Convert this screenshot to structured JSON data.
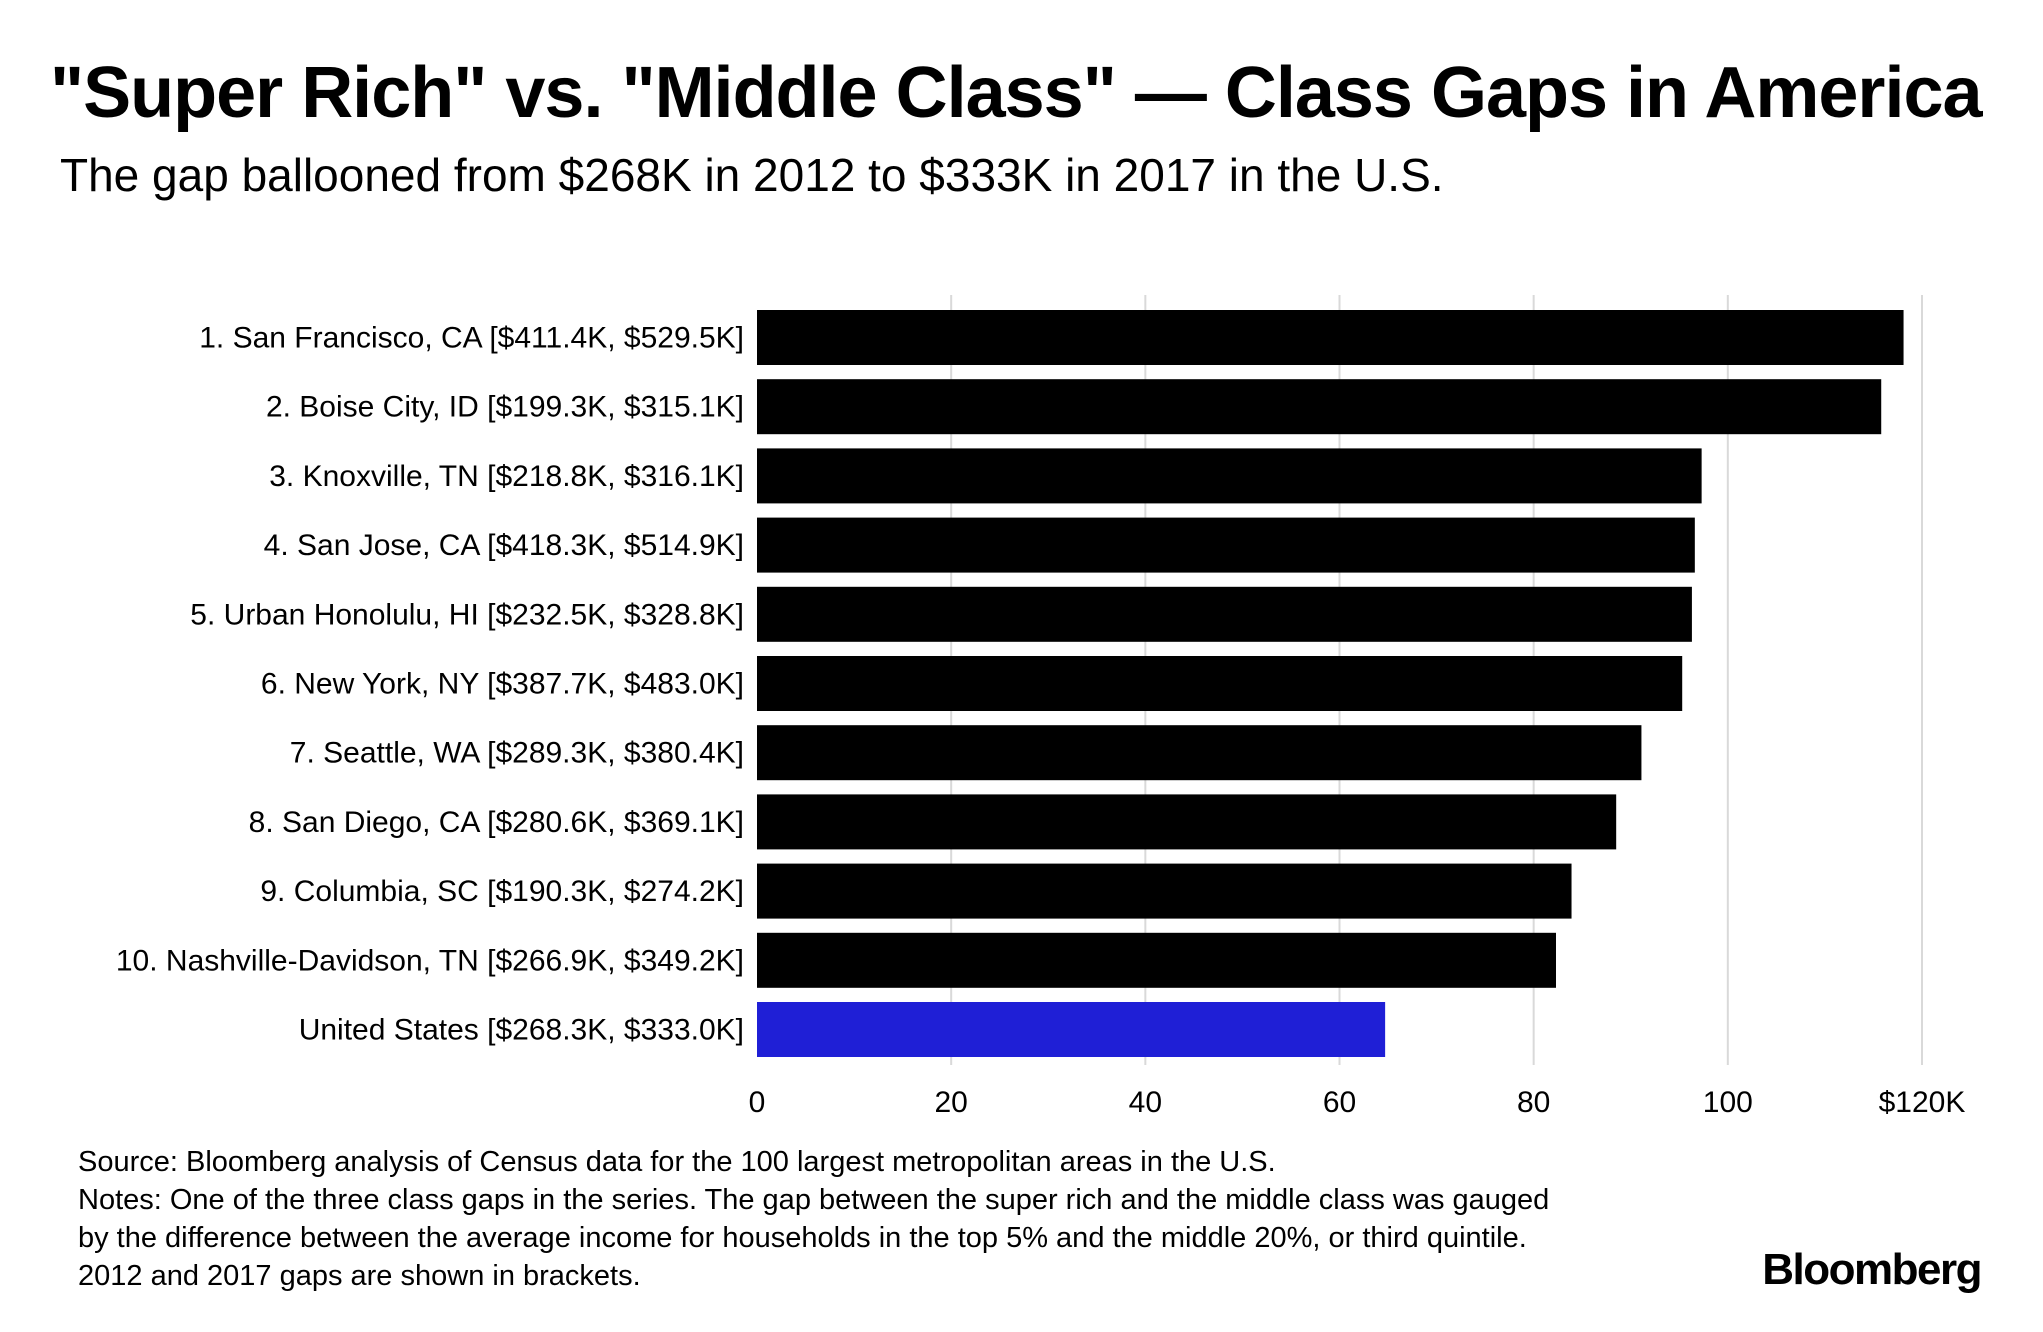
{
  "title": "\"Super Rich\" vs. \"Middle Class\" — Class Gaps in America",
  "subtitle": "The gap ballooned from $268K in 2012 to $333K in 2017 in the U.S.",
  "source": "Source: Bloomberg analysis of Census data for the 100 largest metropolitan areas in the U.S.",
  "notes": [
    "Notes: One of the three class gaps in the series. The gap between the super rich and the middle class was gauged",
    "by the difference between the average income for households in the top 5% and the middle 20%, or third quintile.",
    "2012 and 2017 gaps are shown in brackets."
  ],
  "logo": "Bloomberg",
  "chart_data": {
    "type": "bar",
    "orientation": "horizontal",
    "title": "\"Super Rich\" vs. \"Middle Class\" — Class Gaps in America",
    "subtitle": "The gap ballooned from $268K in 2012 to $333K in 2017 in the U.S.",
    "xlabel": "",
    "ylabel": "",
    "xlim": [
      0,
      120
    ],
    "ticks": [
      0,
      20,
      40,
      60,
      80,
      100,
      120
    ],
    "tick_labels": [
      "0",
      "20",
      "40",
      "60",
      "80",
      "100",
      "$120K"
    ],
    "grid": "vertical",
    "categories": [
      "1. San Francisco, CA [$411.4K, $529.5K]",
      "2. Boise City, ID [$199.3K, $315.1K]",
      "3. Knoxville, TN [$218.8K, $316.1K]",
      "4. San Jose, CA [$418.3K, $514.9K]",
      "5. Urban Honolulu, HI [$232.5K, $328.8K]",
      "6. New York, NY [$387.7K, $483.0K]",
      "7. Seattle, WA [$289.3K, $380.4K]",
      "8. San Diego, CA [$280.6K, $369.1K]",
      "9. Columbia, SC [$190.3K, $274.2K]",
      "10. Nashville-Davidson, TN [$266.9K, $349.2K]",
      "United States [$268.3K, $333.0K]"
    ],
    "values": [
      118.1,
      115.8,
      97.3,
      96.6,
      96.3,
      95.3,
      91.1,
      88.5,
      83.9,
      82.3,
      64.7
    ],
    "colors": [
      "#000000",
      "#000000",
      "#000000",
      "#000000",
      "#000000",
      "#000000",
      "#000000",
      "#000000",
      "#000000",
      "#000000",
      "#1f1fd6"
    ],
    "grid_color": "#d9d9d9"
  }
}
